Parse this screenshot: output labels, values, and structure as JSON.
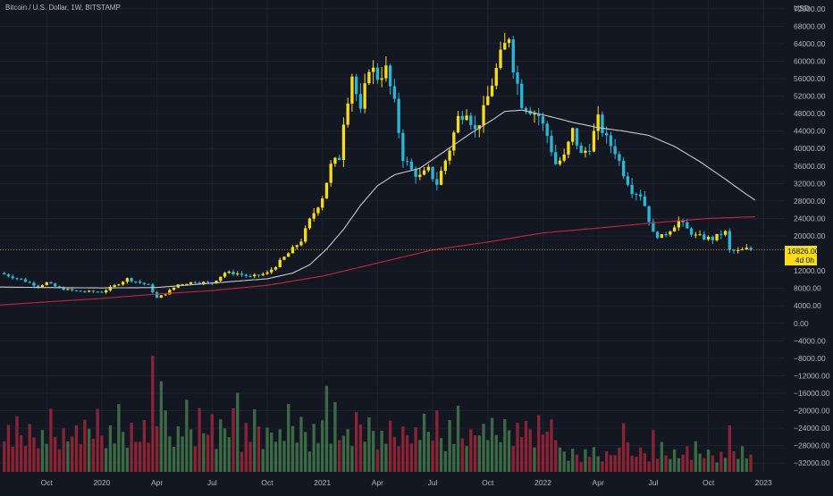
{
  "header": {
    "symbol_title": "Bitcoin / U.S. Dollar, 1W, BITSTAMP",
    "unit": "USD"
  },
  "price_tag": {
    "value": "16826.00",
    "countdown": "4d 0h"
  },
  "colors": {
    "background": "#131722",
    "up_candle": "#f7dc1a",
    "down_candle": "#2bb6d6",
    "ma_short": "#c8c8c8",
    "ma_long": "#c2283a",
    "volume_up": "#3b6a45",
    "volume_down": "#8a2333",
    "grid": "#1e2230"
  },
  "chart_data": {
    "type": "candlestick",
    "title": "Bitcoin / U.S. Dollar, 1W, BITSTAMP",
    "y_unit": "USD",
    "ylim": [
      -34000,
      74000
    ],
    "y_ticks": [
      72000,
      68000,
      64000,
      60000,
      56000,
      52000,
      48000,
      44000,
      40000,
      36000,
      32000,
      28000,
      24000,
      20000,
      12000,
      8000,
      4000,
      0,
      -4000,
      -8000,
      -12000,
      -16000,
      -20000,
      -24000,
      -28000,
      -32000
    ],
    "y_tick_labels": [
      "72000.00",
      "68000.00",
      "64000.00",
      "60000.00",
      "56000.00",
      "52000.00",
      "48000.00",
      "44000.00",
      "40000.00",
      "36000.00",
      "32000.00",
      "28000.00",
      "24000.00",
      "20000.00",
      "12000.00",
      "8000.00",
      "4000.00",
      "0.00",
      "−4000.00",
      "−8000.00",
      "−12000.00",
      "−16000.00",
      "−20000.00",
      "−24000.00",
      "−28000.00",
      "−32000.00"
    ],
    "x_ticks": [
      {
        "label": "Oct",
        "week": 0
      },
      {
        "label": "2020",
        "week": 13
      },
      {
        "label": "Apr",
        "week": 26
      },
      {
        "label": "Jul",
        "week": 39
      },
      {
        "label": "Oct",
        "week": 52
      },
      {
        "label": "2021",
        "week": 65
      },
      {
        "label": "Apr",
        "week": 78
      },
      {
        "label": "Jul",
        "week": 91
      },
      {
        "label": "Oct",
        "week": 104
      },
      {
        "label": "2022",
        "week": 117
      },
      {
        "label": "Apr",
        "week": 130
      },
      {
        "label": "Jul",
        "week": 143
      },
      {
        "label": "Oct",
        "week": 156
      },
      {
        "label": "2023",
        "week": 169
      }
    ],
    "x_range_weeks": [
      -11,
      174
    ],
    "last_price": 16826,
    "close_anchors": [
      [
        -11,
        11500
      ],
      [
        -6,
        10000
      ],
      [
        -2,
        8500
      ],
      [
        0,
        9300
      ],
      [
        3,
        8000
      ],
      [
        6,
        7500
      ],
      [
        8,
        7300
      ],
      [
        13,
        7200
      ],
      [
        16,
        8600
      ],
      [
        19,
        10200
      ],
      [
        21,
        9600
      ],
      [
        24,
        8700
      ],
      [
        26,
        5800
      ],
      [
        28,
        6800
      ],
      [
        31,
        8900
      ],
      [
        35,
        9500
      ],
      [
        39,
        9200
      ],
      [
        42,
        11600
      ],
      [
        45,
        11400
      ],
      [
        48,
        10600
      ],
      [
        52,
        11500
      ],
      [
        54,
        13200
      ],
      [
        57,
        16000
      ],
      [
        60,
        19000
      ],
      [
        62,
        23500
      ],
      [
        65,
        29000
      ],
      [
        67,
        36000
      ],
      [
        69,
        38000
      ],
      [
        70,
        46500
      ],
      [
        72,
        57000
      ],
      [
        74,
        48000
      ],
      [
        76,
        59000
      ],
      [
        78,
        56500
      ],
      [
        80,
        58000
      ],
      [
        82,
        50000
      ],
      [
        84,
        38000
      ],
      [
        86,
        35000
      ],
      [
        88,
        33500
      ],
      [
        90,
        35000
      ],
      [
        92,
        32000
      ],
      [
        95,
        40000
      ],
      [
        97,
        47000
      ],
      [
        99,
        49000
      ],
      [
        101,
        44000
      ],
      [
        103,
        48500
      ],
      [
        105,
        55000
      ],
      [
        107,
        61000
      ],
      [
        108,
        63500
      ],
      [
        109,
        66000
      ],
      [
        110,
        59000
      ],
      [
        112,
        50500
      ],
      [
        114,
        49000
      ],
      [
        116,
        47500
      ],
      [
        118,
        43000
      ],
      [
        120,
        36500
      ],
      [
        122,
        38000
      ],
      [
        124,
        44000
      ],
      [
        126,
        38500
      ],
      [
        128,
        40500
      ],
      [
        130,
        46500
      ],
      [
        132,
        42000
      ],
      [
        134,
        39500
      ],
      [
        136,
        34500
      ],
      [
        138,
        30500
      ],
      [
        140,
        29500
      ],
      [
        141,
        27000
      ],
      [
        143,
        20500
      ],
      [
        145,
        19800
      ],
      [
        147,
        21500
      ],
      [
        149,
        23500
      ],
      [
        151,
        21500
      ],
      [
        153,
        20000
      ],
      [
        155,
        19600
      ],
      [
        157,
        19300
      ],
      [
        159,
        20500
      ],
      [
        160,
        20800
      ],
      [
        161,
        16600
      ],
      [
        163,
        16500
      ],
      [
        165,
        17000
      ],
      [
        166,
        16826
      ]
    ],
    "ma_short_anchors": [
      [
        -11,
        8300
      ],
      [
        0,
        8200
      ],
      [
        13,
        8100
      ],
      [
        26,
        8200
      ],
      [
        39,
        9200
      ],
      [
        52,
        10200
      ],
      [
        58,
        11500
      ],
      [
        62,
        13400
      ],
      [
        66,
        17000
      ],
      [
        70,
        21500
      ],
      [
        74,
        27000
      ],
      [
        78,
        31500
      ],
      [
        82,
        34000
      ],
      [
        88,
        35500
      ],
      [
        94,
        39500
      ],
      [
        100,
        43500
      ],
      [
        105,
        46500
      ],
      [
        108,
        48500
      ],
      [
        112,
        48800
      ],
      [
        118,
        47500
      ],
      [
        124,
        46000
      ],
      [
        130,
        44800
      ],
      [
        136,
        44000
      ],
      [
        142,
        43000
      ],
      [
        148,
        40500
      ],
      [
        154,
        37000
      ],
      [
        160,
        33000
      ],
      [
        165,
        29500
      ],
      [
        167,
        28200
      ]
    ],
    "ma_long_anchors": [
      [
        -11,
        4200
      ],
      [
        0,
        4900
      ],
      [
        13,
        5700
      ],
      [
        26,
        6700
      ],
      [
        39,
        7500
      ],
      [
        52,
        8700
      ],
      [
        65,
        10800
      ],
      [
        78,
        13800
      ],
      [
        91,
        16800
      ],
      [
        104,
        18600
      ],
      [
        117,
        20700
      ],
      [
        130,
        21800
      ],
      [
        143,
        23000
      ],
      [
        156,
        24000
      ],
      [
        167,
        24400
      ]
    ],
    "volume_pattern": [
      0.35,
      0.5,
      0.28,
      0.62,
      0.42,
      0.3,
      0.55,
      0.38,
      0.24,
      0.45,
      0.33,
      0.6,
      0.4,
      0.27,
      0.5,
      0.36
    ],
    "volume_spikes": [
      {
        "week": 25,
        "value": 1.0
      },
      {
        "week": 27,
        "value": 0.78
      },
      {
        "week": 33,
        "value": 0.62
      },
      {
        "week": 36,
        "value": 0.55
      },
      {
        "week": 45,
        "value": 0.68
      },
      {
        "week": 66,
        "value": 0.74
      },
      {
        "week": 68,
        "value": 0.6
      },
      {
        "week": 136,
        "value": 0.42
      },
      {
        "week": 143,
        "value": 0.36
      },
      {
        "week": 161,
        "value": 0.4
      }
    ],
    "series": [
      {
        "name": "",
        "kind": "candles"
      },
      {
        "name": "",
        "kind": "moving-average-short"
      },
      {
        "name": "",
        "kind": "moving-average-long"
      },
      {
        "name": "",
        "kind": "volume"
      }
    ]
  }
}
